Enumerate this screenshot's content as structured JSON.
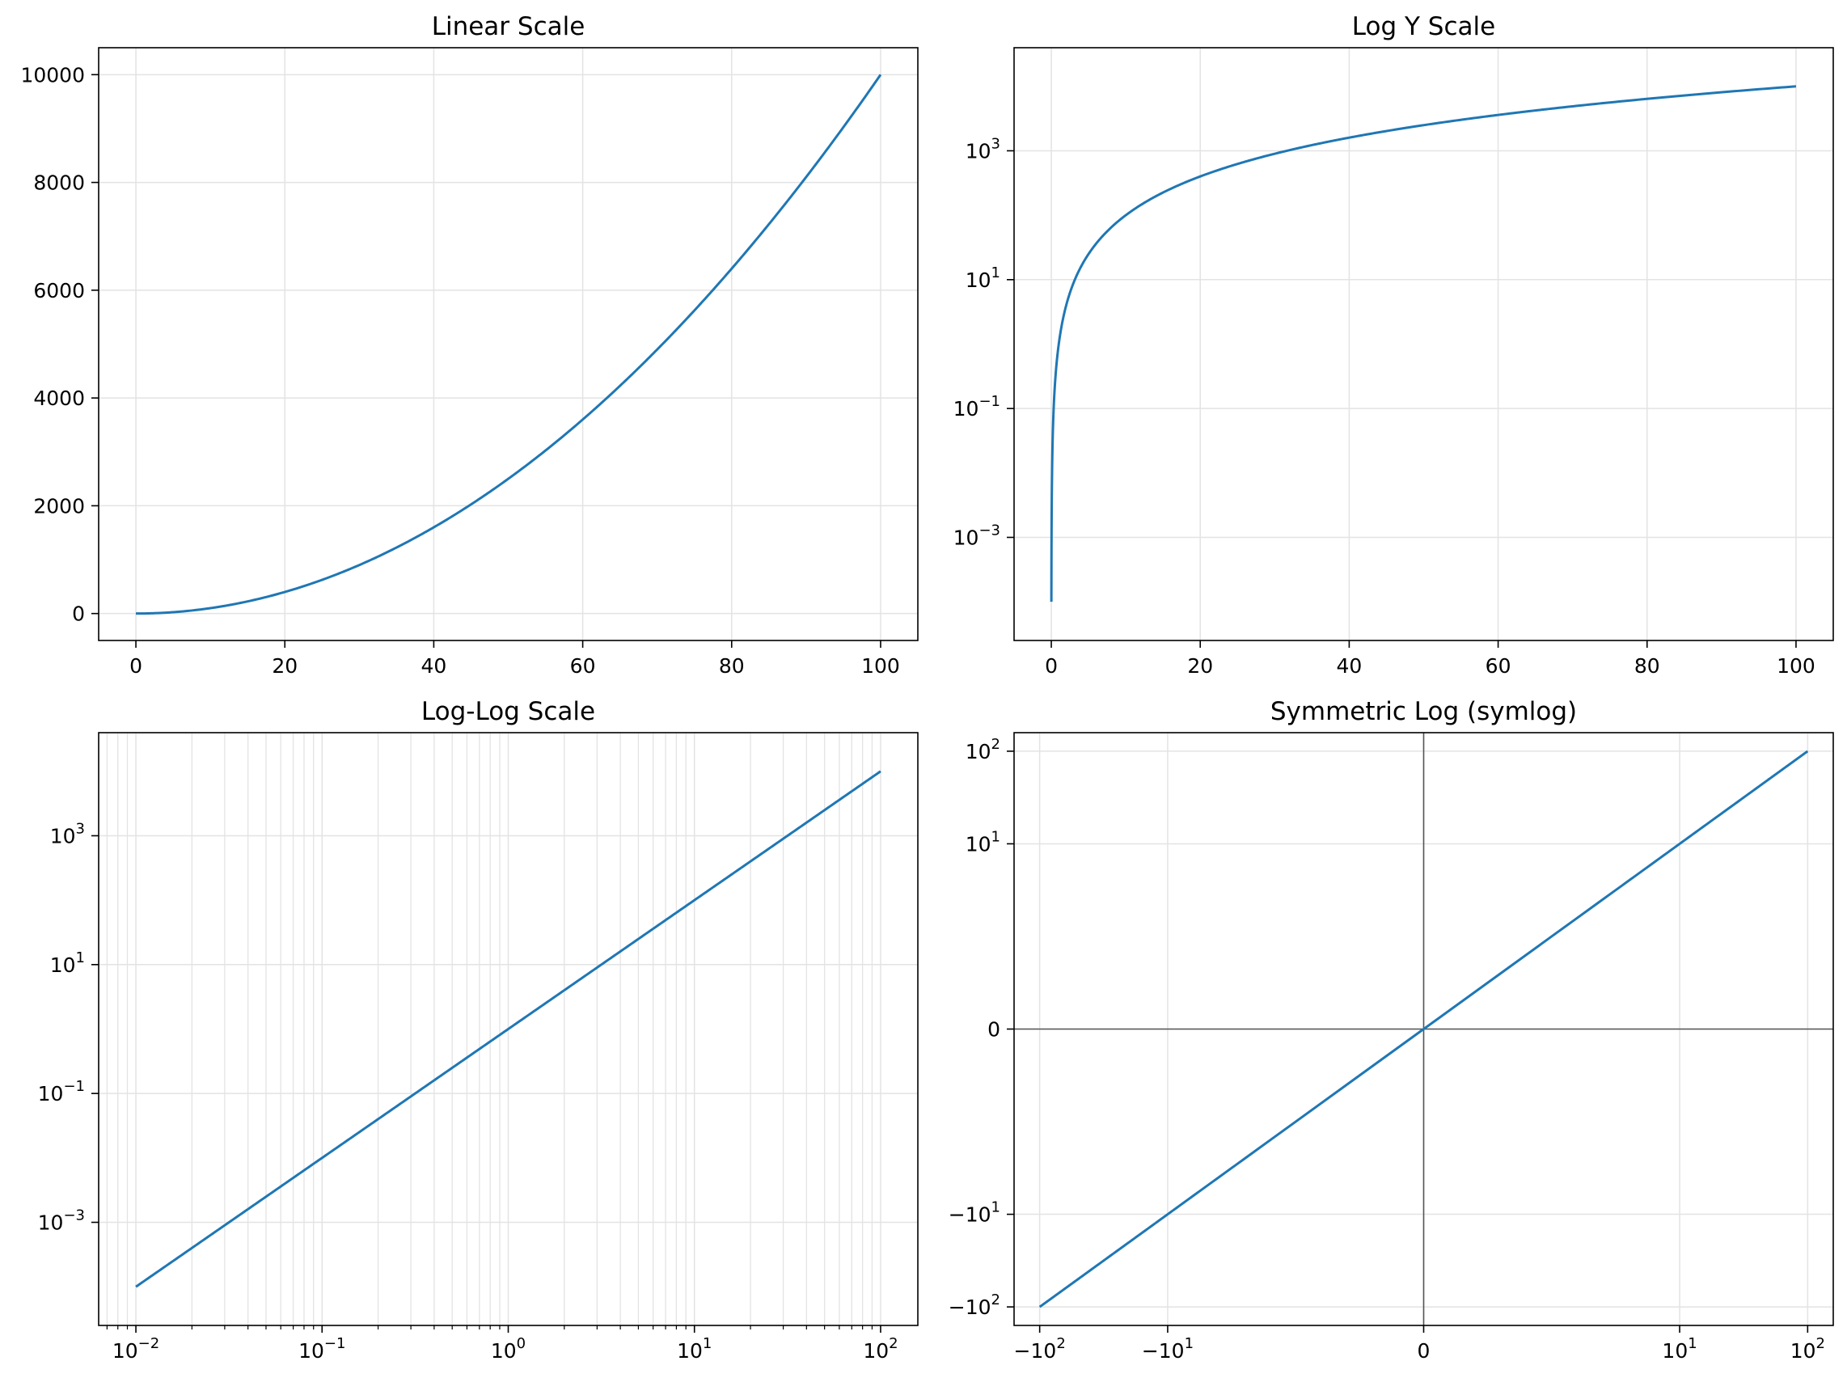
{
  "colors": {
    "line": "#1f77b4",
    "grid": "#e3e3e3",
    "axis": "#000000",
    "zero_line": "#555555"
  },
  "chart_data": [
    {
      "type": "line",
      "title": "Linear Scale",
      "xscale": "linear",
      "yscale": "linear",
      "xlim": [
        -5,
        105
      ],
      "ylim": [
        -500,
        10500
      ],
      "xticks": [
        0,
        20,
        40,
        60,
        80,
        100
      ],
      "xtick_labels": [
        "0",
        "20",
        "40",
        "60",
        "80",
        "100"
      ],
      "yticks": [
        0,
        2000,
        4000,
        6000,
        8000,
        10000
      ],
      "ytick_labels": [
        "0",
        "2000",
        "4000",
        "6000",
        "8000",
        "10000"
      ],
      "grid": true,
      "function": "y = x^2",
      "x_range": [
        0,
        100
      ]
    },
    {
      "type": "line",
      "title": "Log Y Scale",
      "xscale": "linear",
      "yscale": "log",
      "xlim": [
        -5,
        105
      ],
      "ylim": [
        2.51e-05,
        39800
      ],
      "xticks": [
        0,
        20,
        40,
        60,
        80,
        100
      ],
      "xtick_labels": [
        "0",
        "20",
        "40",
        "60",
        "80",
        "100"
      ],
      "yticks": [
        0.001,
        0.1,
        10,
        1000
      ],
      "ytick_labels": [
        {
          "base": "10",
          "exp": "−3"
        },
        {
          "base": "10",
          "exp": "−1"
        },
        {
          "base": "10",
          "exp": "1"
        },
        {
          "base": "10",
          "exp": "3"
        }
      ],
      "grid": true,
      "function": "y = x^2",
      "x_range": [
        0.01,
        100
      ]
    },
    {
      "type": "line",
      "title": "Log-Log Scale",
      "xscale": "log",
      "yscale": "log",
      "xlim": [
        0.00631,
        158.5
      ],
      "ylim": [
        2.51e-05,
        39800
      ],
      "xticks": [
        0.01,
        0.1,
        1,
        10,
        100
      ],
      "xtick_labels": [
        {
          "base": "10",
          "exp": "−2"
        },
        {
          "base": "10",
          "exp": "−1"
        },
        {
          "base": "10",
          "exp": "0"
        },
        {
          "base": "10",
          "exp": "1"
        },
        {
          "base": "10",
          "exp": "2"
        }
      ],
      "yticks": [
        0.001,
        0.1,
        10,
        1000
      ],
      "ytick_labels": [
        {
          "base": "10",
          "exp": "−3"
        },
        {
          "base": "10",
          "exp": "−1"
        },
        {
          "base": "10",
          "exp": "1"
        },
        {
          "base": "10",
          "exp": "3"
        }
      ],
      "grid": true,
      "minor_grid_x": true,
      "function": "y = x^2",
      "x_range": [
        0.01,
        100
      ]
    },
    {
      "type": "line",
      "title": "Symmetric Log (symlog)",
      "xscale": "symlog",
      "yscale": "symlog",
      "linthresh": 1,
      "xlim": [
        -158.5,
        158.5
      ],
      "ylim": [
        -158.5,
        158.5
      ],
      "xticks": [
        -100,
        -10,
        0,
        10,
        100
      ],
      "xtick_labels": [
        {
          "base": "−10",
          "exp": "2"
        },
        {
          "base": "−10",
          "exp": "1"
        },
        {
          "base": "0",
          "exp": ""
        },
        {
          "base": "10",
          "exp": "1"
        },
        {
          "base": "10",
          "exp": "2"
        }
      ],
      "yticks": [
        -100,
        -10,
        0,
        10,
        100
      ],
      "ytick_labels": [
        {
          "base": "−10",
          "exp": "2"
        },
        {
          "base": "−10",
          "exp": "1"
        },
        {
          "base": "0",
          "exp": ""
        },
        {
          "base": "10",
          "exp": "1"
        },
        {
          "base": "10",
          "exp": "2"
        }
      ],
      "grid": true,
      "zero_lines": true,
      "function": "y = x",
      "x_range": [
        -100,
        100
      ]
    }
  ]
}
